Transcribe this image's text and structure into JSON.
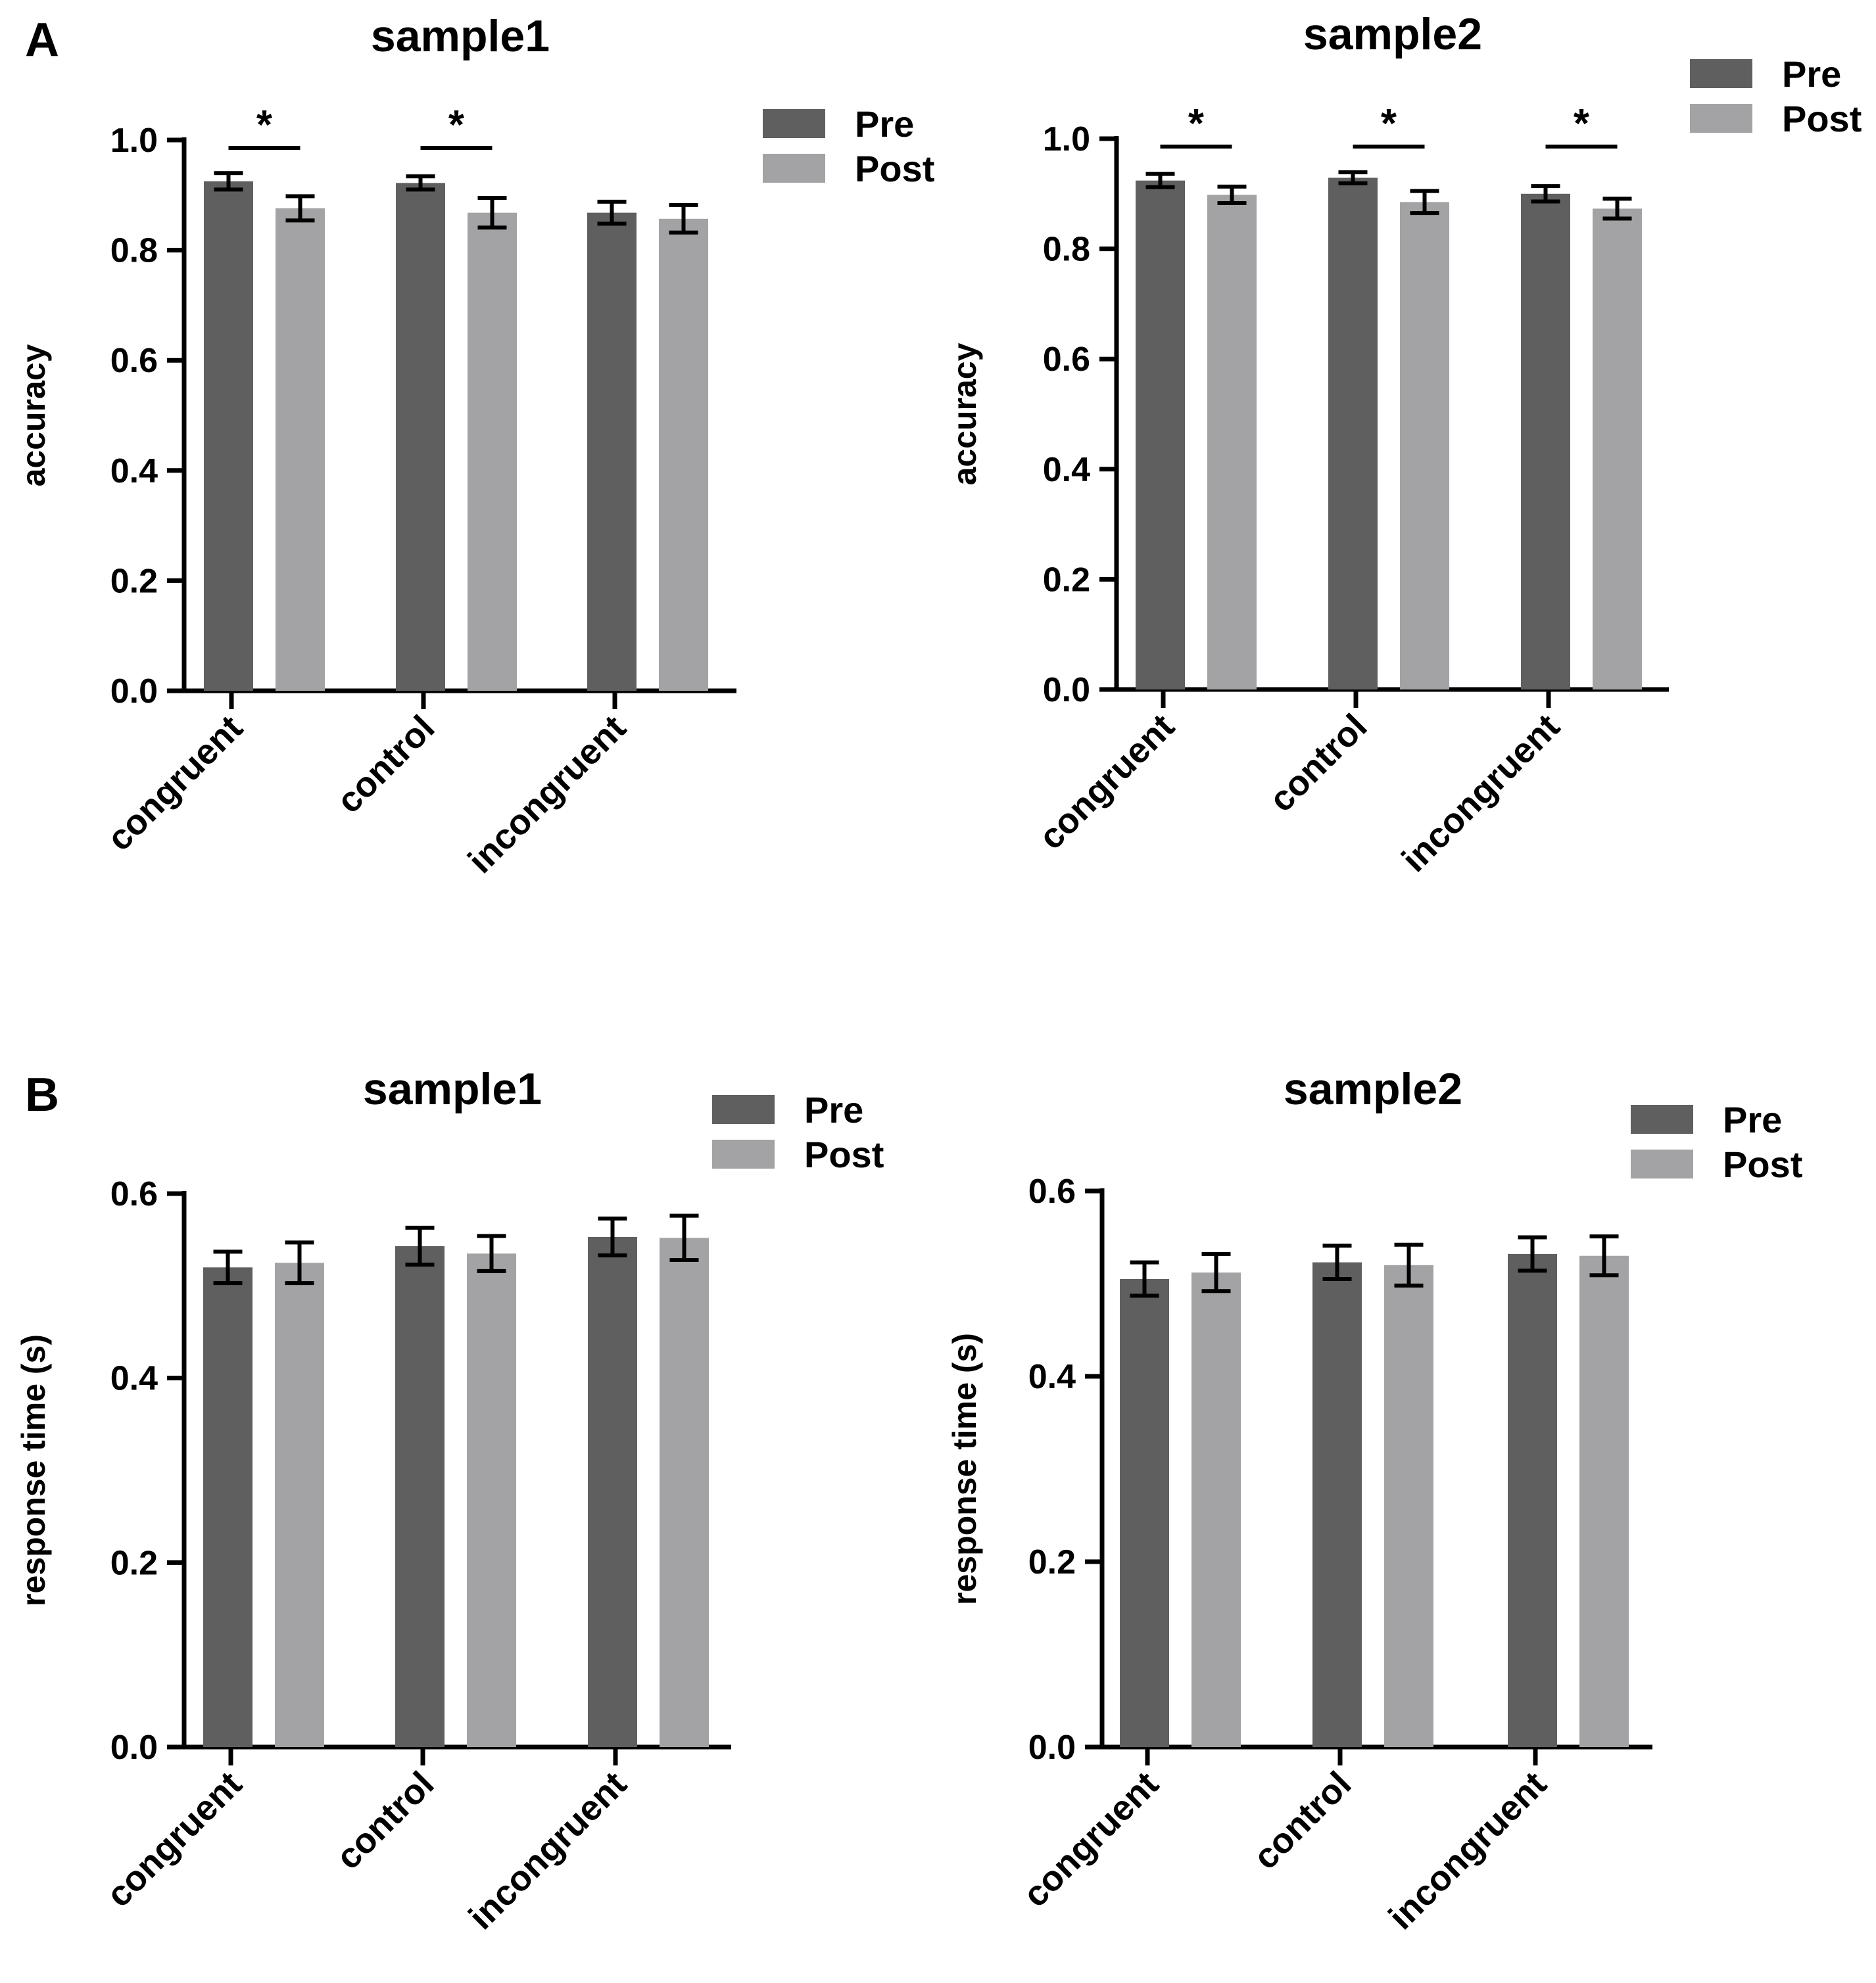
{
  "figure": {
    "panel_labels": [
      "A",
      "B"
    ]
  },
  "colors": {
    "pre": "#5f5f5f",
    "post": "#a3a3a5",
    "axis": "#000000"
  },
  "chart_data": [
    {
      "id": "A-sample1",
      "panel": "A",
      "type": "bar",
      "title": "sample1",
      "ylabel": "accuracy",
      "xlabel": "",
      "categories": [
        "congruent",
        "control",
        "incongruent"
      ],
      "ylim": [
        0,
        1.0
      ],
      "yticks": [
        0.0,
        0.2,
        0.4,
        0.6,
        0.8,
        1.0
      ],
      "ytick_labels": [
        "0.0",
        "0.2",
        "0.4",
        "0.6",
        "0.8",
        "1.0"
      ],
      "legend": {
        "position": "top-right",
        "entries": [
          "Pre",
          "Post"
        ]
      },
      "series": [
        {
          "name": "Pre",
          "values": [
            0.925,
            0.922,
            0.868
          ],
          "errors": [
            0.015,
            0.012,
            0.02
          ]
        },
        {
          "name": "Post",
          "values": [
            0.876,
            0.868,
            0.857
          ],
          "errors": [
            0.022,
            0.027,
            0.025
          ]
        }
      ],
      "significance": [
        {
          "category": "congruent",
          "label": "*"
        },
        {
          "category": "control",
          "label": "*"
        }
      ]
    },
    {
      "id": "A-sample2",
      "panel": "A",
      "type": "bar",
      "title": "sample2",
      "ylabel": "accuracy",
      "xlabel": "",
      "categories": [
        "congruent",
        "control",
        "incongruent"
      ],
      "ylim": [
        0,
        1.0
      ],
      "yticks": [
        0.0,
        0.2,
        0.4,
        0.6,
        0.8,
        1.0
      ],
      "ytick_labels": [
        "0.0",
        "0.2",
        "0.4",
        "0.6",
        "0.8",
        "1.0"
      ],
      "legend": {
        "position": "top-right",
        "entries": [
          "Pre",
          "Post"
        ]
      },
      "series": [
        {
          "name": "Pre",
          "values": [
            0.924,
            0.929,
            0.9
          ],
          "errors": [
            0.012,
            0.01,
            0.014
          ]
        },
        {
          "name": "Post",
          "values": [
            0.898,
            0.885,
            0.873
          ],
          "errors": [
            0.015,
            0.02,
            0.018
          ]
        }
      ],
      "significance": [
        {
          "category": "congruent",
          "label": "*"
        },
        {
          "category": "control",
          "label": "*"
        },
        {
          "category": "incongruent",
          "label": "*"
        }
      ]
    },
    {
      "id": "B-sample1",
      "panel": "B",
      "type": "bar",
      "title": "sample1",
      "ylabel": "response time (s)",
      "xlabel": "",
      "categories": [
        "congruent",
        "control",
        "incongruent"
      ],
      "ylim": [
        0,
        0.6
      ],
      "yticks": [
        0.0,
        0.2,
        0.4,
        0.6
      ],
      "ytick_labels": [
        "0.0",
        "0.2",
        "0.4",
        "0.6"
      ],
      "legend": {
        "position": "top-right",
        "entries": [
          "Pre",
          "Post"
        ]
      },
      "series": [
        {
          "name": "Pre",
          "values": [
            0.52,
            0.543,
            0.553
          ],
          "errors": [
            0.017,
            0.02,
            0.02
          ]
        },
        {
          "name": "Post",
          "values": [
            0.525,
            0.535,
            0.552
          ],
          "errors": [
            0.022,
            0.019,
            0.024
          ]
        }
      ],
      "significance": []
    },
    {
      "id": "B-sample2",
      "panel": "B",
      "type": "bar",
      "title": "sample2",
      "ylabel": "response time (s)",
      "xlabel": "",
      "categories": [
        "congruent",
        "control",
        "incongruent"
      ],
      "ylim": [
        0,
        0.6
      ],
      "yticks": [
        0.0,
        0.2,
        0.4,
        0.6
      ],
      "ytick_labels": [
        "0.0",
        "0.2",
        "0.4",
        "0.6"
      ],
      "legend": {
        "position": "top-right",
        "entries": [
          "Pre",
          "Post"
        ]
      },
      "series": [
        {
          "name": "Pre",
          "values": [
            0.505,
            0.523,
            0.532
          ],
          "errors": [
            0.018,
            0.018,
            0.018
          ]
        },
        {
          "name": "Post",
          "values": [
            0.512,
            0.52,
            0.53
          ],
          "errors": [
            0.02,
            0.022,
            0.021
          ]
        }
      ],
      "significance": []
    }
  ]
}
